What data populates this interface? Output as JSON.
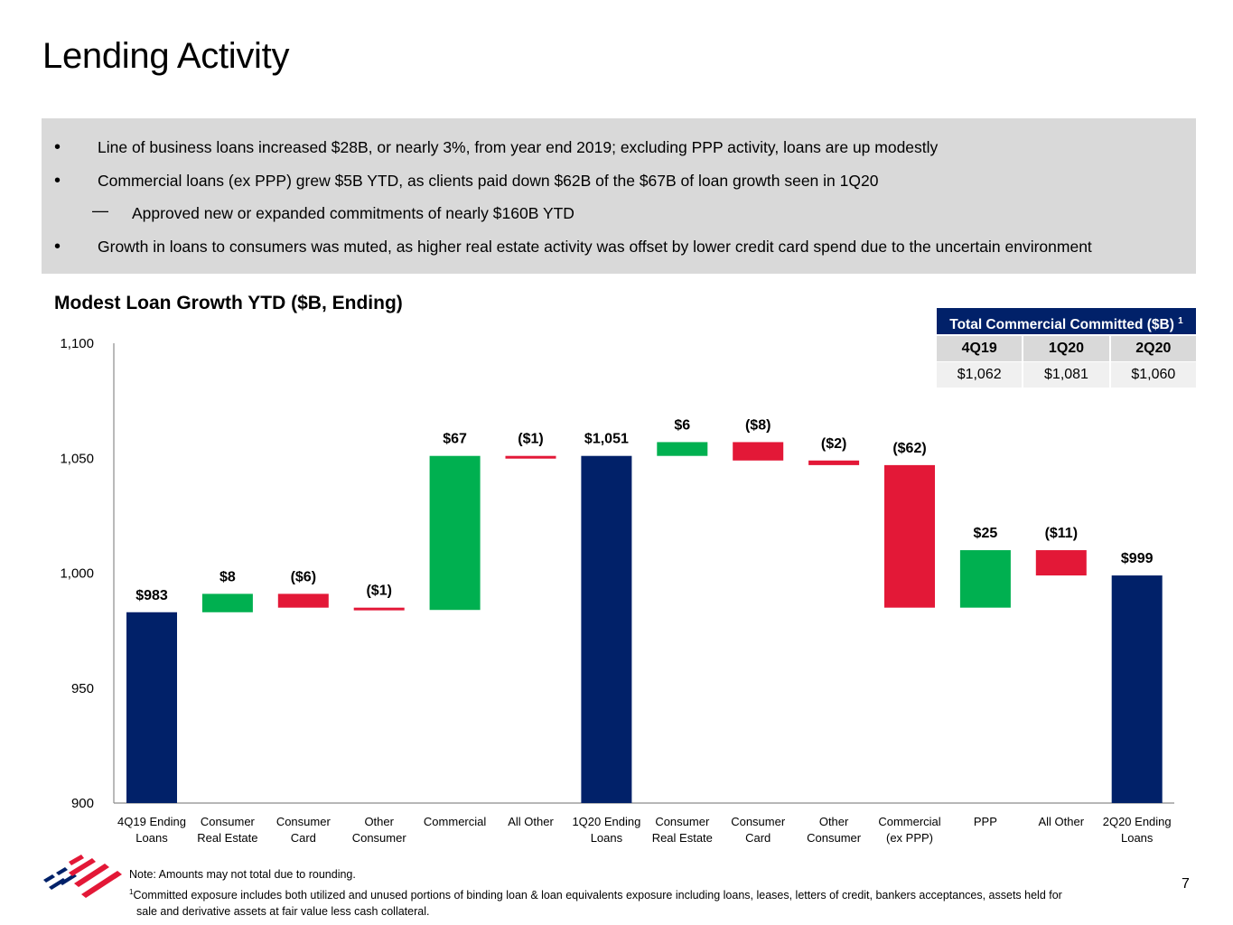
{
  "page": {
    "title": "Lending Activity",
    "page_number": "7"
  },
  "bullets": [
    {
      "text": "Line of business loans increased $28B, or nearly 3%, from year end 2019; excluding PPP activity, loans are up modestly"
    },
    {
      "text": "Commercial loans (ex PPP) grew $5B YTD, as clients paid down $62B of the $67B of loan growth seen in 1Q20"
    },
    {
      "text": "Approved new or expanded commitments of nearly $160B YTD",
      "sub": true
    },
    {
      "text": "Growth in loans to consumers was muted, as higher real estate activity was offset by lower credit card spend due to the uncertain environment"
    }
  ],
  "committed_table": {
    "title": "Total Commercial Committed ($B)",
    "footnote_ref": "1",
    "headers": [
      "4Q19",
      "1Q20",
      "2Q20"
    ],
    "values": [
      "$1,062",
      "$1,081",
      "$1,060"
    ]
  },
  "chart_data": {
    "type": "bar",
    "subtype": "waterfall",
    "title": "Modest Loan Growth YTD ($B, Ending)",
    "xlabel": "",
    "ylabel": "",
    "ylim": [
      900,
      1100
    ],
    "yticks": [
      900,
      950,
      1000,
      1050,
      1100
    ],
    "ytick_labels": [
      "900",
      "950",
      "1,000",
      "1,050",
      "1,100"
    ],
    "grid": false,
    "colors": {
      "total": "#012169",
      "increase": "#00b050",
      "decrease": "#e31837"
    },
    "categories": [
      [
        "4Q19 Ending",
        "Loans"
      ],
      [
        "Consumer",
        "Real Estate"
      ],
      [
        "Consumer",
        "Card"
      ],
      [
        "Other",
        "Consumer"
      ],
      [
        "Commercial"
      ],
      [
        "All Other"
      ],
      [
        "1Q20 Ending",
        "Loans"
      ],
      [
        "Consumer",
        "Real Estate"
      ],
      [
        "Consumer",
        "Card"
      ],
      [
        "Other",
        "Consumer"
      ],
      [
        "Commercial",
        "(ex PPP)"
      ],
      [
        "PPP"
      ],
      [
        "All Other"
      ],
      [
        "2Q20 Ending",
        "Loans"
      ]
    ],
    "bars": [
      {
        "kind": "total",
        "value": 983,
        "label": "$983"
      },
      {
        "kind": "increase",
        "value": 8,
        "start": 983,
        "end": 991,
        "label": "$8"
      },
      {
        "kind": "decrease",
        "value": -6,
        "start": 991,
        "end": 985,
        "label": "($6)"
      },
      {
        "kind": "decrease",
        "value": -1,
        "start": 985,
        "end": 984,
        "label": "($1)"
      },
      {
        "kind": "increase",
        "value": 67,
        "start": 984,
        "end": 1051,
        "label": "$67"
      },
      {
        "kind": "decrease",
        "value": -1,
        "start": 1051,
        "end": 1050,
        "label": "($1)"
      },
      {
        "kind": "total",
        "value": 1051,
        "label": "$1,051"
      },
      {
        "kind": "increase",
        "value": 6,
        "start": 1051,
        "end": 1057,
        "label": "$6"
      },
      {
        "kind": "decrease",
        "value": -8,
        "start": 1057,
        "end": 1049,
        "label": "($8)"
      },
      {
        "kind": "decrease",
        "value": -2,
        "start": 1049,
        "end": 1047,
        "label": "($2)"
      },
      {
        "kind": "decrease",
        "value": -62,
        "start": 1047,
        "end": 985,
        "label": "($62)"
      },
      {
        "kind": "increase",
        "value": 25,
        "start": 985,
        "end": 1010,
        "label": "$25"
      },
      {
        "kind": "decrease",
        "value": -11,
        "start": 1010,
        "end": 999,
        "label": "($11)"
      },
      {
        "kind": "total",
        "value": 999,
        "label": "$999"
      }
    ]
  },
  "footer": {
    "note": "Note: Amounts may not total due to rounding.",
    "footnote_mark": "1",
    "footnote_line1": "Committed exposure includes both utilized and unused portions of binding loan & loan equivalents exposure including loans, leases, letters of credit, bankers acceptances, assets held for",
    "footnote_line2": "sale and derivative assets at fair value less cash collateral.",
    "logo": "bank-flag-logo-icon"
  }
}
